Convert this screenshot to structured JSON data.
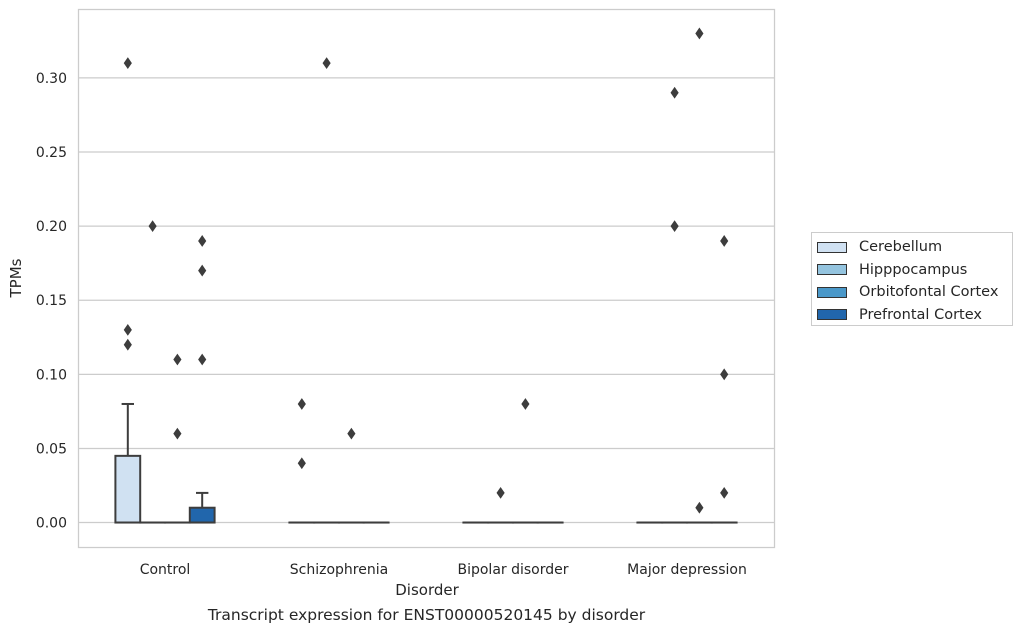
{
  "caption": "Transcript expression for ENST00000520145 by disorder",
  "chart_data": {
    "type": "box",
    "title": "",
    "xlabel": "Disorder",
    "ylabel": "TPMs",
    "categories": [
      "Control",
      "Schizophrenia",
      "Bipolar disorder",
      "Major depression"
    ],
    "ylim": [
      -0.0165,
      0.3465
    ],
    "yticks": [
      0.0,
      0.05,
      0.1,
      0.15,
      0.2,
      0.25,
      0.3
    ],
    "ytick_labels": [
      "0.00",
      "0.05",
      "0.10",
      "0.15",
      "0.20",
      "0.25",
      "0.30"
    ],
    "grid": "horizontal",
    "legend": {
      "placement": "right, outside plot"
    },
    "series": [
      {
        "name": "Cerebellum",
        "color": "#d0e1f2",
        "boxes": [
          {
            "q1": 0.0,
            "median": 0.0,
            "q3": 0.045,
            "whisker_low": 0.0,
            "whisker_high": 0.08,
            "outliers": [
              0.12,
              0.13,
              0.31
            ]
          },
          {
            "q1": 0.0,
            "median": 0.0,
            "q3": 0.0,
            "whisker_low": 0.0,
            "whisker_high": 0.0,
            "outliers": [
              0.04,
              0.08
            ]
          },
          {
            "q1": 0.0,
            "median": 0.0,
            "q3": 0.0,
            "whisker_low": 0.0,
            "whisker_high": 0.0,
            "outliers": []
          },
          {
            "q1": 0.0,
            "median": 0.0,
            "q3": 0.0,
            "whisker_low": 0.0,
            "whisker_high": 0.0,
            "outliers": []
          }
        ]
      },
      {
        "name": "Hipppocampus",
        "color": "#94c4df",
        "boxes": [
          {
            "q1": 0.0,
            "median": 0.0,
            "q3": 0.0,
            "whisker_low": 0.0,
            "whisker_high": 0.0,
            "outliers": [
              0.2
            ]
          },
          {
            "q1": 0.0,
            "median": 0.0,
            "q3": 0.0,
            "whisker_low": 0.0,
            "whisker_high": 0.0,
            "outliers": [
              0.31
            ]
          },
          {
            "q1": 0.0,
            "median": 0.0,
            "q3": 0.0,
            "whisker_low": 0.0,
            "whisker_high": 0.0,
            "outliers": [
              0.02
            ]
          },
          {
            "q1": 0.0,
            "median": 0.0,
            "q3": 0.0,
            "whisker_low": 0.0,
            "whisker_high": 0.0,
            "outliers": [
              0.2,
              0.29
            ]
          }
        ]
      },
      {
        "name": "Orbitofontal Cortex",
        "color": "#4a98c9",
        "boxes": [
          {
            "q1": 0.0,
            "median": 0.0,
            "q3": 0.0,
            "whisker_low": 0.0,
            "whisker_high": 0.0,
            "outliers": [
              0.06,
              0.11
            ]
          },
          {
            "q1": 0.0,
            "median": 0.0,
            "q3": 0.0,
            "whisker_low": 0.0,
            "whisker_high": 0.0,
            "outliers": [
              0.06
            ]
          },
          {
            "q1": 0.0,
            "median": 0.0,
            "q3": 0.0,
            "whisker_low": 0.0,
            "whisker_high": 0.0,
            "outliers": [
              0.08
            ]
          },
          {
            "q1": 0.0,
            "median": 0.0,
            "q3": 0.0,
            "whisker_low": 0.0,
            "whisker_high": 0.0,
            "outliers": [
              0.01,
              0.33
            ]
          }
        ]
      },
      {
        "name": "Prefrontal Cortex",
        "color": "#2166ac",
        "boxes": [
          {
            "q1": 0.0,
            "median": 0.0,
            "q3": 0.01,
            "whisker_low": 0.0,
            "whisker_high": 0.02,
            "outliers": [
              0.11,
              0.17,
              0.19
            ]
          },
          {
            "q1": 0.0,
            "median": 0.0,
            "q3": 0.0,
            "whisker_low": 0.0,
            "whisker_high": 0.0,
            "outliers": []
          },
          {
            "q1": 0.0,
            "median": 0.0,
            "q3": 0.0,
            "whisker_low": 0.0,
            "whisker_high": 0.0,
            "outliers": []
          },
          {
            "q1": 0.0,
            "median": 0.0,
            "q3": 0.0,
            "whisker_low": 0.0,
            "whisker_high": 0.0,
            "outliers": [
              0.02,
              0.1,
              0.19
            ]
          }
        ]
      }
    ]
  }
}
